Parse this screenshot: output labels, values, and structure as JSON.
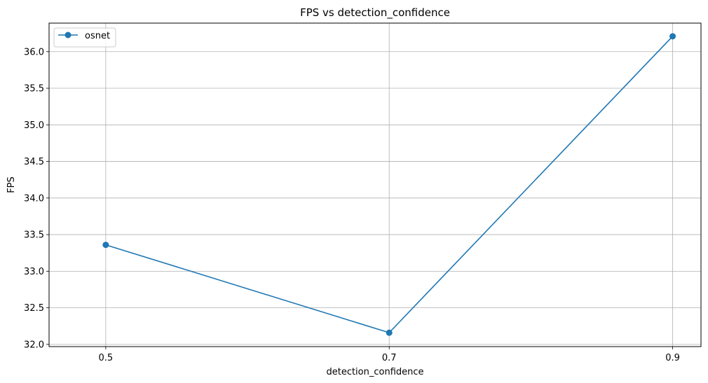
{
  "chart_data": {
    "type": "line",
    "title": "FPS vs detection_confidence",
    "xlabel": "detection_confidence",
    "ylabel": "FPS",
    "x": [
      0.5,
      0.7,
      0.9
    ],
    "x_tick_labels": [
      "0.5",
      "0.7",
      "0.9"
    ],
    "xlim": [
      0.46,
      0.92
    ],
    "ylim": [
      31.97,
      36.39
    ],
    "y_ticks": [
      32.0,
      32.5,
      33.0,
      33.5,
      34.0,
      34.5,
      35.0,
      35.5,
      36.0
    ],
    "y_tick_labels": [
      "32.0",
      "32.5",
      "33.0",
      "33.5",
      "34.0",
      "34.5",
      "35.0",
      "35.5",
      "36.0"
    ],
    "grid": true,
    "legend_position": "top-left",
    "series": [
      {
        "name": "osnet",
        "color": "#1f77b4",
        "marker": "circle",
        "values": [
          33.36,
          32.16,
          36.21
        ]
      }
    ]
  }
}
